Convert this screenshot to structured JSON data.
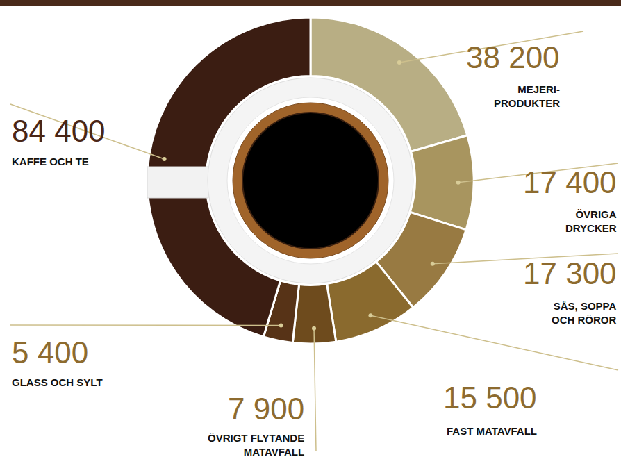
{
  "chart_data": {
    "type": "pie",
    "categories": [
      "MEJERI-\nPRODUKTER",
      "ÖVRIGA\nDRYCKER",
      "SÅS, SOPPA\nOCH RÖROR",
      "FAST MATAVFALL",
      "ÖVRIGT FLYTANDE\nMATAVFALL",
      "GLASS OCH SYLT",
      "KAFFE OCH TE"
    ],
    "values": [
      38200,
      17400,
      17300,
      15500,
      7900,
      5400,
      84400
    ],
    "value_labels": [
      "38 200",
      "17 400",
      "17 300",
      "15 500",
      "7 900",
      "5 400",
      "84 400"
    ],
    "colors": [
      "#b8ae84",
      "#a8955f",
      "#987a42",
      "#8a6a2e",
      "#6e4b1d",
      "#573317",
      "#3b1d12"
    ],
    "data_labels": true
  }
}
